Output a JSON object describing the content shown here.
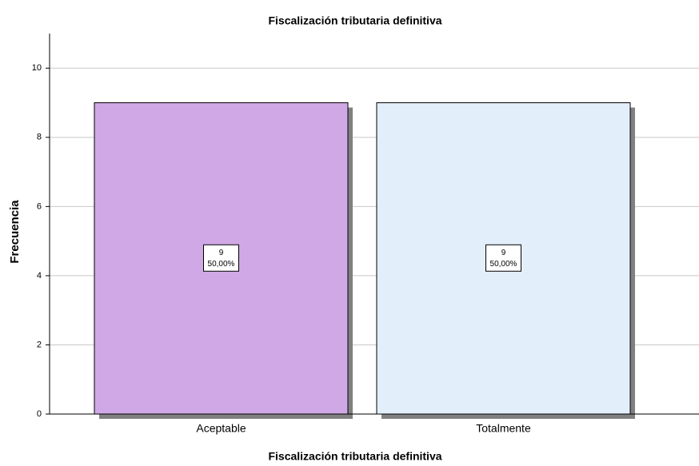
{
  "chart_data": {
    "type": "bar",
    "title": "Fiscalización tributaria definitiva",
    "xlabel": "Fiscalización tributaria definitiva",
    "ylabel": "Frecuencia",
    "categories": [
      "Aceptable",
      "Totalmente"
    ],
    "values": [
      9,
      9
    ],
    "percent_labels": [
      "50,00%",
      "50,00%"
    ],
    "colors": [
      "#d0a8e6",
      "#e2effb"
    ],
    "ylim": [
      0,
      11
    ],
    "yticks": [
      0,
      2,
      4,
      6,
      8,
      10
    ],
    "grid": true
  }
}
